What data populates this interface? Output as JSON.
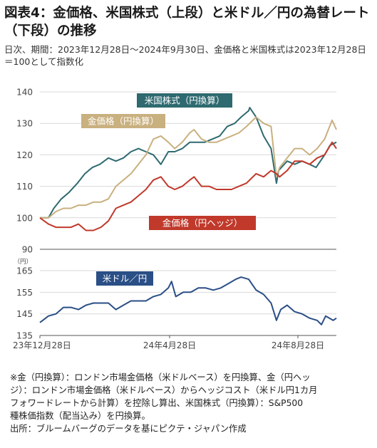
{
  "title": "図表4：金価格、米国株式（上段）と米ドル／円の為替レート（下段）の推移",
  "subtitle": "日次、期間：2023年12月28日～2024年9月30日、金価格と米国株式は2023年12月28日＝100として指数化",
  "notes": [
    "※金（円換算）：ロンドン市場金価格（米ドルベース）を円換算、金（円ヘッ",
    "ジ）：ロンドン市場金価格（米ドルベース）からヘッジコスト（米ドル円1カ月",
    "フォワードレートから計算）を控除し算出、米国株式（円換算）：S&P500",
    "種株価指数（配当込み）を円換算。",
    "出所：ブルームバーグのデータを基にピクテ・ジャパン作成"
  ],
  "colors": {
    "us_equity": "#2e6a70",
    "gold_yen": "#c9b07f",
    "gold_hedged": "#c0392b",
    "usdjpy": "#2a4e86"
  },
  "chart_data": [
    {
      "type": "line",
      "x_range": [
        "2023-12-28",
        "2024-09-30"
      ],
      "ylim": [
        90,
        140
      ],
      "yticks": [
        90,
        100,
        110,
        120,
        130,
        140
      ],
      "grid": true,
      "series": [
        {
          "name": "米国株式（円換算）",
          "color": "#2e6a70",
          "points": [
            [
              "2023-12-28",
              100
            ],
            [
              "2024-01-05",
              100
            ],
            [
              "2024-01-10",
              103
            ],
            [
              "2024-01-17",
              106
            ],
            [
              "2024-01-24",
              108
            ],
            [
              "2024-02-01",
              111
            ],
            [
              "2024-02-08",
              114
            ],
            [
              "2024-02-15",
              116
            ],
            [
              "2024-02-22",
              117
            ],
            [
              "2024-03-01",
              119
            ],
            [
              "2024-03-08",
              118
            ],
            [
              "2024-03-15",
              119
            ],
            [
              "2024-03-22",
              121
            ],
            [
              "2024-03-29",
              122
            ],
            [
              "2024-04-05",
              121
            ],
            [
              "2024-04-12",
              120
            ],
            [
              "2024-04-19",
              117
            ],
            [
              "2024-04-26",
              121
            ],
            [
              "2024-05-02",
              121
            ],
            [
              "2024-05-09",
              122
            ],
            [
              "2024-05-16",
              124
            ],
            [
              "2024-05-23",
              124
            ],
            [
              "2024-05-30",
              124
            ],
            [
              "2024-06-06",
              125
            ],
            [
              "2024-06-13",
              126
            ],
            [
              "2024-06-20",
              129
            ],
            [
              "2024-06-27",
              130
            ],
            [
              "2024-07-03",
              132
            ],
            [
              "2024-07-10",
              134
            ],
            [
              "2024-07-11",
              135
            ],
            [
              "2024-07-17",
              132
            ],
            [
              "2024-07-24",
              126
            ],
            [
              "2024-07-31",
              122
            ],
            [
              "2024-08-05",
              111
            ],
            [
              "2024-08-07",
              115
            ],
            [
              "2024-08-15",
              118
            ],
            [
              "2024-08-22",
              117
            ],
            [
              "2024-08-29",
              118
            ],
            [
              "2024-09-05",
              117
            ],
            [
              "2024-09-11",
              116
            ],
            [
              "2024-09-19",
              120
            ],
            [
              "2024-09-24",
              123
            ],
            [
              "2024-09-30",
              124
            ]
          ]
        },
        {
          "name": "金価格（円換算）",
          "color": "#c9b07f",
          "points": [
            [
              "2023-12-28",
              100
            ],
            [
              "2024-01-05",
              100
            ],
            [
              "2024-01-12",
              102
            ],
            [
              "2024-01-19",
              103
            ],
            [
              "2024-01-26",
              103
            ],
            [
              "2024-02-02",
              104
            ],
            [
              "2024-02-09",
              104
            ],
            [
              "2024-02-16",
              105
            ],
            [
              "2024-02-23",
              105
            ],
            [
              "2024-03-01",
              106
            ],
            [
              "2024-03-08",
              110
            ],
            [
              "2024-03-15",
              112
            ],
            [
              "2024-03-22",
              114
            ],
            [
              "2024-03-29",
              117
            ],
            [
              "2024-04-05",
              120
            ],
            [
              "2024-04-12",
              125
            ],
            [
              "2024-04-19",
              126
            ],
            [
              "2024-04-26",
              124
            ],
            [
              "2024-05-02",
              122
            ],
            [
              "2024-05-09",
              124
            ],
            [
              "2024-05-16",
              127
            ],
            [
              "2024-05-20",
              128
            ],
            [
              "2024-05-27",
              125
            ],
            [
              "2024-06-03",
              124
            ],
            [
              "2024-06-10",
              124
            ],
            [
              "2024-06-17",
              125
            ],
            [
              "2024-06-24",
              126
            ],
            [
              "2024-07-01",
              127
            ],
            [
              "2024-07-08",
              129
            ],
            [
              "2024-07-17",
              132
            ],
            [
              "2024-07-24",
              130
            ],
            [
              "2024-07-31",
              129
            ],
            [
              "2024-08-05",
              113
            ],
            [
              "2024-08-08",
              116
            ],
            [
              "2024-08-15",
              119
            ],
            [
              "2024-08-22",
              122
            ],
            [
              "2024-08-29",
              122
            ],
            [
              "2024-09-05",
              120
            ],
            [
              "2024-09-12",
              122
            ],
            [
              "2024-09-19",
              125
            ],
            [
              "2024-09-26",
              131
            ],
            [
              "2024-09-30",
              128
            ]
          ]
        },
        {
          "name": "金価格（円ヘッジ）",
          "color": "#c0392b",
          "points": [
            [
              "2023-12-28",
              100
            ],
            [
              "2024-01-05",
              98
            ],
            [
              "2024-01-12",
              97
            ],
            [
              "2024-01-19",
              97
            ],
            [
              "2024-01-26",
              97
            ],
            [
              "2024-02-02",
              98
            ],
            [
              "2024-02-09",
              96
            ],
            [
              "2024-02-16",
              96
            ],
            [
              "2024-02-23",
              97
            ],
            [
              "2024-03-01",
              99
            ],
            [
              "2024-03-08",
              103
            ],
            [
              "2024-03-15",
              104
            ],
            [
              "2024-03-22",
              105
            ],
            [
              "2024-03-29",
              107
            ],
            [
              "2024-04-05",
              109
            ],
            [
              "2024-04-12",
              112
            ],
            [
              "2024-04-19",
              113
            ],
            [
              "2024-04-26",
              110
            ],
            [
              "2024-05-02",
              109
            ],
            [
              "2024-05-09",
              110
            ],
            [
              "2024-05-16",
              112
            ],
            [
              "2024-05-20",
              113
            ],
            [
              "2024-05-27",
              110
            ],
            [
              "2024-06-03",
              110
            ],
            [
              "2024-06-10",
              109
            ],
            [
              "2024-06-17",
              109
            ],
            [
              "2024-06-24",
              109
            ],
            [
              "2024-07-01",
              110
            ],
            [
              "2024-07-08",
              111
            ],
            [
              "2024-07-17",
              114
            ],
            [
              "2024-07-24",
              113
            ],
            [
              "2024-07-31",
              115
            ],
            [
              "2024-08-05",
              114
            ],
            [
              "2024-08-08",
              113
            ],
            [
              "2024-08-15",
              115
            ],
            [
              "2024-08-22",
              118
            ],
            [
              "2024-08-29",
              118
            ],
            [
              "2024-09-05",
              117
            ],
            [
              "2024-09-12",
              119
            ],
            [
              "2024-09-19",
              120
            ],
            [
              "2024-09-26",
              124
            ],
            [
              "2024-09-30",
              122
            ]
          ]
        }
      ],
      "labels": [
        {
          "series": "米国株式（円換算）",
          "text": "米国株式（円換算）"
        },
        {
          "series": "金価格（円換算）",
          "text": "金価格（円換算）"
        },
        {
          "series": "金価格（円ヘッジ）",
          "text": "金価格（円ヘッジ）"
        }
      ]
    },
    {
      "type": "line",
      "x_range": [
        "2023-12-28",
        "2024-09-30"
      ],
      "ylim": [
        135,
        165
      ],
      "yticks": [
        135,
        145,
        155,
        165
      ],
      "unit": "（円）",
      "xticks": [
        "23年12月28日",
        "24年4月28日",
        "24年8月28日"
      ],
      "grid": true,
      "series": [
        {
          "name": "米ドル／円",
          "color": "#2a4e86",
          "points": [
            [
              "2023-12-28",
              141
            ],
            [
              "2024-01-05",
              144
            ],
            [
              "2024-01-12",
              145
            ],
            [
              "2024-01-19",
              148
            ],
            [
              "2024-01-26",
              148
            ],
            [
              "2024-02-02",
              147
            ],
            [
              "2024-02-09",
              149
            ],
            [
              "2024-02-16",
              150
            ],
            [
              "2024-02-23",
              150
            ],
            [
              "2024-03-01",
              150
            ],
            [
              "2024-03-08",
              147
            ],
            [
              "2024-03-15",
              149
            ],
            [
              "2024-03-22",
              151
            ],
            [
              "2024-03-29",
              151
            ],
            [
              "2024-04-05",
              151
            ],
            [
              "2024-04-12",
              153
            ],
            [
              "2024-04-19",
              154
            ],
            [
              "2024-04-26",
              157
            ],
            [
              "2024-04-29",
              160
            ],
            [
              "2024-05-03",
              153
            ],
            [
              "2024-05-10",
              155
            ],
            [
              "2024-05-17",
              155
            ],
            [
              "2024-05-24",
              157
            ],
            [
              "2024-05-31",
              157
            ],
            [
              "2024-06-07",
              156
            ],
            [
              "2024-06-14",
              157
            ],
            [
              "2024-06-21",
              159
            ],
            [
              "2024-06-28",
              161
            ],
            [
              "2024-07-03",
              162
            ],
            [
              "2024-07-10",
              161
            ],
            [
              "2024-07-17",
              156
            ],
            [
              "2024-07-24",
              154
            ],
            [
              "2024-07-31",
              150
            ],
            [
              "2024-08-05",
              142
            ],
            [
              "2024-08-09",
              147
            ],
            [
              "2024-08-15",
              149
            ],
            [
              "2024-08-22",
              146
            ],
            [
              "2024-08-29",
              145
            ],
            [
              "2024-09-05",
              143
            ],
            [
              "2024-09-12",
              142
            ],
            [
              "2024-09-16",
              140
            ],
            [
              "2024-09-20",
              144
            ],
            [
              "2024-09-27",
              142
            ],
            [
              "2024-09-30",
              143
            ]
          ]
        }
      ],
      "labels": [
        {
          "series": "米ドル／円",
          "text": "米ドル／円"
        }
      ]
    }
  ]
}
